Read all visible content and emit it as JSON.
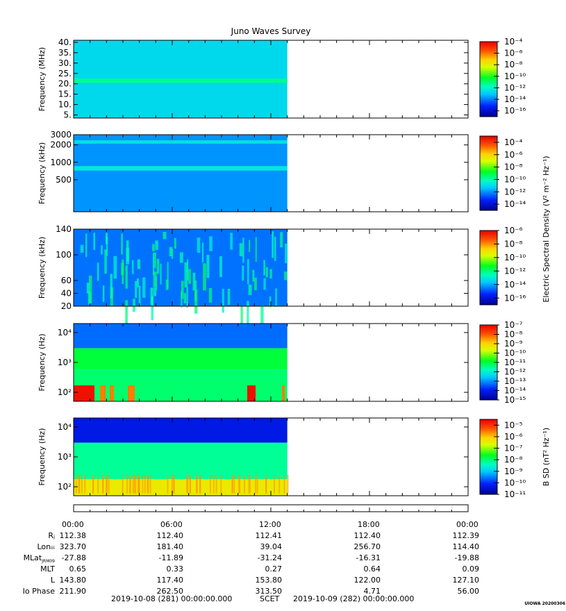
{
  "title": "Juno Waves Survey",
  "credit": "UIOWA 20200306",
  "time_axis": {
    "start_label": "2019-10-08 (281) 00:00:00.000",
    "middle_label": "SCET",
    "end_label": "2019-10-09 (282) 00:00:00.000",
    "data_end_hours": 13.0
  },
  "chart_data": [
    {
      "type": "heatmap",
      "ylabel": "Frequency (MHz)",
      "yscale": "linear",
      "ylim": [
        3.5,
        41
      ],
      "yticks": [
        5,
        10,
        15,
        20,
        25,
        30,
        35,
        40
      ],
      "ytick_labels": [
        "5.",
        "10.",
        "15.",
        "20.",
        "25.",
        "30.",
        "35.",
        "40."
      ],
      "colorbar": {
        "label": "",
        "exponents": [
          -4,
          -6,
          -8,
          -10,
          -12,
          -14,
          -16
        ],
        "range": [
          -17,
          -4
        ]
      },
      "bands": [
        {
          "range": [
            3.5,
            41
          ],
          "level": -12.7
        },
        {
          "range": [
            20.5,
            22.5
          ],
          "level": -11.3
        }
      ]
    },
    {
      "type": "heatmap",
      "ylabel": "Frequency (kHz)",
      "yscale": "log",
      "ylim": [
        140,
        3000
      ],
      "yticks": [
        500,
        1000,
        2000,
        3000
      ],
      "ytick_labels": [
        "500",
        "1000",
        "2000",
        "3000"
      ],
      "colorbar": {
        "label": "Electric Spectral Density (V² m⁻² Hz⁻¹)",
        "exponents": [
          -4,
          -6,
          -8,
          -10,
          -12,
          -14
        ],
        "range": [
          -15,
          -3
        ]
      },
      "bands": [
        {
          "range": [
            140,
            3000
          ],
          "level": -12.0
        },
        {
          "range": [
            720,
            860
          ],
          "level": -10.7
        },
        {
          "range": [
            2100,
            2400
          ],
          "level": -10.9
        }
      ]
    },
    {
      "type": "heatmap",
      "ylabel": "Frequency (kHz)",
      "yscale": "linear",
      "ylim": [
        20,
        140
      ],
      "yticks": [
        20,
        40,
        60,
        100,
        140
      ],
      "ytick_labels": [
        "20",
        "40",
        "60",
        "100",
        "140"
      ],
      "colorbar": {
        "label": "",
        "exponents": [
          -6,
          -8,
          -10,
          -12,
          -14,
          -16
        ],
        "range": [
          -17,
          -6
        ]
      },
      "bands": [
        {
          "range": [
            20,
            140
          ],
          "level": -14.6
        }
      ]
    },
    {
      "type": "heatmap",
      "ylabel": "Frequency (Hz)",
      "yscale": "log",
      "ylim": [
        50,
        20000
      ],
      "yticks": [
        100,
        1000,
        10000
      ],
      "ytick_labels": [
        "10²",
        "10³",
        "10⁴"
      ],
      "colorbar": {
        "label": "",
        "exponents": [
          -7,
          -8,
          -9,
          -10,
          -11,
          -12,
          -13,
          -14,
          -15
        ],
        "range": [
          -15,
          -7
        ]
      },
      "bands": [
        {
          "range": [
            50,
            600
          ],
          "level": -11.3
        },
        {
          "range": [
            600,
            3000
          ],
          "level": -11.0
        },
        {
          "range": [
            3000,
            20000
          ],
          "level": -13.3
        }
      ]
    },
    {
      "type": "heatmap",
      "ylabel": "Frequency (Hz)",
      "yscale": "log",
      "ylim": [
        50,
        20000
      ],
      "yticks": [
        100,
        1000,
        10000
      ],
      "ytick_labels": [
        "10²",
        "10³",
        "10⁴"
      ],
      "colorbar": {
        "label": "B SD (nT² Hz⁻¹)",
        "exponents": [
          -5,
          -6,
          -7,
          -8,
          -9,
          -10,
          -11
        ],
        "range": [
          -11,
          -4.5
        ]
      },
      "bands": [
        {
          "range": [
            50,
            180
          ],
          "level": -6.4
        },
        {
          "range": [
            180,
            3000
          ],
          "level": -8.2
        },
        {
          "range": [
            3000,
            20000
          ],
          "level": -10.3
        }
      ]
    }
  ],
  "ephemeris": {
    "times": [
      "00:00",
      "06:00",
      "12:00",
      "18:00",
      "00:00"
    ],
    "rows": [
      {
        "label": "Rⱼ",
        "values": [
          "112.38",
          "112.40",
          "112.41",
          "112.40",
          "112.39"
        ]
      },
      {
        "label": "Lonᵢᵢᵢ",
        "values": [
          "323.70",
          "181.40",
          "39.04",
          "256.70",
          "114.40"
        ]
      },
      {
        "label": "MLat",
        "sub": "JRM09",
        "values": [
          "-27.88",
          "-11.89",
          "-31.24",
          "-16.31",
          "-19.88"
        ]
      },
      {
        "label": "MLT",
        "values": [
          "0.65",
          "0.33",
          "0.27",
          "0.64",
          "0.09"
        ]
      },
      {
        "label": "L",
        "values": [
          "143.80",
          "117.40",
          "153.80",
          "122.00",
          "127.10"
        ]
      },
      {
        "label": "Io Phase",
        "values": [
          "211.90",
          "262.50",
          "313.50",
          "4.71",
          "56.00"
        ]
      }
    ]
  }
}
